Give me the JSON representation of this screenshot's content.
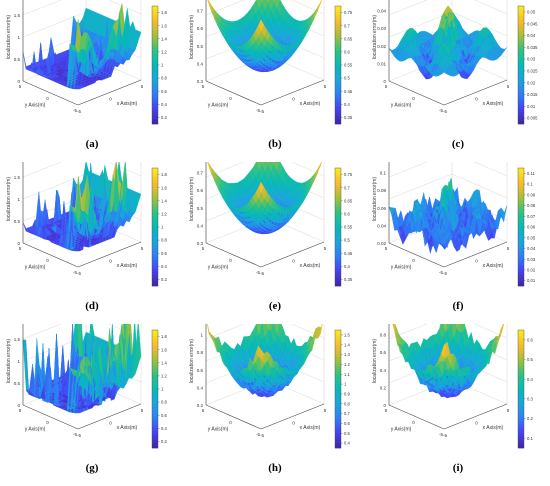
{
  "figure": {
    "colors": {
      "colormap": [
        "#3e26a8",
        "#4743f3",
        "#2d80f4",
        "#1aa5dc",
        "#07b9b7",
        "#2bc285",
        "#9fc03b",
        "#f5ba2e",
        "#fae61c"
      ],
      "axis": "#444444",
      "grid": "#d9d9d9"
    },
    "panels": [
      {
        "id": "a",
        "caption": "(a)",
        "zlabel": "localization error(m)",
        "xlabel": "x Axis(m)",
        "ylabel": "y Axis(m)",
        "x_ticks": [
          "-5",
          "0",
          "5"
        ],
        "y_ticks": [
          "-5",
          "0",
          "5"
        ],
        "z_ticks": [
          "0",
          "0.5",
          "1",
          "1.5",
          "2"
        ],
        "cb_ticks": [
          "0.2",
          "0.4",
          "0.6",
          "0.8",
          "1",
          "1.2",
          "1.4",
          "1.6",
          "1.8"
        ],
        "zlim": [
          0,
          2
        ],
        "surface": "noisy_wall",
        "noise": 0.25
      },
      {
        "id": "b",
        "caption": "(b)",
        "zlabel": "localization error(m)",
        "xlabel": "x Axis(m)",
        "ylabel": "y Axis(m)",
        "x_ticks": [
          "-5",
          "0",
          "5"
        ],
        "y_ticks": [
          "-5",
          "0",
          "5"
        ],
        "z_ticks": [
          "0.3",
          "0.4",
          "0.5",
          "0.6",
          "0.7",
          "0.8"
        ],
        "cb_ticks": [
          "0.35",
          "0.4",
          "0.45",
          "0.5",
          "0.55",
          "0.6",
          "0.65",
          "0.7",
          "0.75"
        ],
        "zlim": [
          0.3,
          0.8
        ],
        "surface": "bowl",
        "noise": 0
      },
      {
        "id": "c",
        "caption": "(c)",
        "zlabel": "localization error(m)",
        "xlabel": "x Axis(m)",
        "ylabel": "y Axis(m)",
        "x_ticks": [
          "-5",
          "0",
          "5"
        ],
        "y_ticks": [
          "-5",
          "0",
          "5"
        ],
        "z_ticks": [
          "0",
          "0.01",
          "0.02",
          "0.03",
          "0.04",
          "0.05"
        ],
        "cb_ticks": [
          "0.005",
          "0.01",
          "0.015",
          "0.02",
          "0.025",
          "0.03",
          "0.035",
          "0.04",
          "0.045",
          "0.05"
        ],
        "zlim": [
          0,
          0.05
        ],
        "surface": "wavy",
        "noise": 0
      },
      {
        "id": "d",
        "caption": "(d)",
        "zlabel": "localization error(m)",
        "xlabel": "x Axis(m)",
        "ylabel": "y Axis(m)",
        "x_ticks": [
          "-5",
          "0",
          "5"
        ],
        "y_ticks": [
          "-5",
          "0",
          "5"
        ],
        "z_ticks": [
          "0",
          "0.5",
          "1",
          "1.5",
          "2"
        ],
        "cb_ticks": [
          "0.2",
          "0.4",
          "0.6",
          "0.8",
          "1",
          "1.2",
          "1.4",
          "1.6",
          "1.8"
        ],
        "zlim": [
          0,
          2
        ],
        "surface": "noisy_wall",
        "noise": 0.35
      },
      {
        "id": "e",
        "caption": "(e)",
        "zlabel": "localization error(m)",
        "xlabel": "x Axis(m)",
        "ylabel": "y Axis(m)",
        "x_ticks": [
          "-5",
          "0",
          "5"
        ],
        "y_ticks": [
          "-5",
          "0",
          "5"
        ],
        "z_ticks": [
          "0.3",
          "0.4",
          "0.5",
          "0.6",
          "0.7",
          "0.8"
        ],
        "cb_ticks": [
          "0.35",
          "0.4",
          "0.45",
          "0.5",
          "0.55",
          "0.6",
          "0.65",
          "0.7",
          "0.75"
        ],
        "zlim": [
          0.3,
          0.8
        ],
        "surface": "bowl",
        "noise": 0.005
      },
      {
        "id": "f",
        "caption": "(f)",
        "zlabel": "localization error(m)",
        "xlabel": "x Axis(m)",
        "ylabel": "y Axis(m)",
        "x_ticks": [
          "-5",
          "0",
          "5"
        ],
        "y_ticks": [
          "-5",
          "0",
          "5"
        ],
        "z_ticks": [
          "0.02",
          "0.04",
          "0.06",
          "0.08",
          "0.1",
          "0.12"
        ],
        "cb_ticks": [
          "0.01",
          "0.02",
          "0.03",
          "0.04",
          "0.05",
          "0.06",
          "0.07",
          "0.08",
          "0.09",
          "0.1",
          "0.11"
        ],
        "zlim": [
          0,
          0.12
        ],
        "surface": "spiky_low",
        "noise": 0.012
      },
      {
        "id": "g",
        "caption": "(g)",
        "zlabel": "localization error(m)",
        "xlabel": "x Axis(m)",
        "ylabel": "y Axis(m)",
        "x_ticks": [
          "-5",
          "0",
          "5"
        ],
        "y_ticks": [
          "-5",
          "0",
          "5"
        ],
        "z_ticks": [
          "0",
          "0.5",
          "1",
          "1.5",
          "2"
        ],
        "cb_ticks": [
          "0.2",
          "0.4",
          "0.6",
          "0.8",
          "1",
          "1.2",
          "1.4",
          "1.6",
          "1.8"
        ],
        "zlim": [
          0,
          2
        ],
        "surface": "noisy_wall",
        "noise": 0.5
      },
      {
        "id": "h",
        "caption": "(h)",
        "zlabel": "localization error(m)",
        "xlabel": "x Axis(m)",
        "ylabel": "y Axis(m)",
        "x_ticks": [
          "-5",
          "0",
          "5"
        ],
        "y_ticks": [
          "-5",
          "0",
          "5"
        ],
        "z_ticks": [
          "0.2",
          "0.4",
          "0.6",
          "0.8",
          "1",
          "1.2"
        ],
        "cb_ticks": [
          "0.4",
          "0.5",
          "0.6",
          "0.7",
          "0.8",
          "0.9",
          "1",
          "1.1",
          "1.2",
          "1.3",
          "1.4",
          "1.5"
        ],
        "zlim": [
          0.2,
          1.2
        ],
        "surface": "bowl",
        "noise": 0.06
      },
      {
        "id": "i",
        "caption": "(i)",
        "zlabel": "localization error(m)",
        "xlabel": "x Axis(m)",
        "ylabel": "y Axis(m)",
        "x_ticks": [
          "-5",
          "0",
          "5"
        ],
        "y_ticks": [
          "-5",
          "0",
          "5"
        ],
        "z_ticks": [
          "0",
          "0.2",
          "0.4",
          "0.6",
          "0.8",
          "1"
        ],
        "cb_ticks": [
          "0.1",
          "0.2",
          "0.3",
          "0.4",
          "0.5",
          "0.6"
        ],
        "zlim": [
          0,
          1
        ],
        "surface": "bowl",
        "noise": 0.08
      }
    ]
  },
  "chart_data": {
    "type": "surface",
    "x_range": [
      -5,
      5
    ],
    "y_range": [
      -5,
      5
    ],
    "subplots": [
      "(a)",
      "(b)",
      "(c)",
      "(d)",
      "(e)",
      "(f)",
      "(g)",
      "(h)",
      "(i)"
    ]
  }
}
